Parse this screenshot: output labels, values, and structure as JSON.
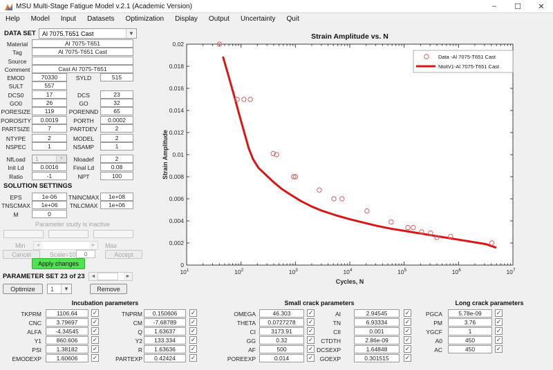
{
  "window": {
    "title": "MSU Multi-Stage Fatigue Model v.2.1 (Academic Version)",
    "minimize": "–",
    "maximize": "☐",
    "close": "✕"
  },
  "menu": {
    "items": [
      "Help",
      "Model",
      "Input",
      "Datasets",
      "Optimization",
      "Display",
      "Output",
      "Uncertainty",
      "Quit"
    ]
  },
  "left_panel": {
    "dataset_label": "DATA SET",
    "dataset_value": "Al 7075.T651 Cast",
    "info_rows": [
      {
        "label": "Material",
        "value": "Al 7075-T651"
      },
      {
        "label": "Tag",
        "value": "Al 7075-T651 Cast"
      },
      {
        "label": "Source",
        "value": ""
      },
      {
        "label": "Comment",
        "value": "Cast Al 7075-T651"
      }
    ],
    "param_rows_1": [
      {
        "l": "EMOD",
        "lv": "70330",
        "r": "SYLD",
        "rv": "515"
      },
      {
        "l": "SULT",
        "lv": "557",
        "r": null,
        "rv": null
      },
      {
        "l": "DCS0",
        "lv": "17",
        "r": "DCS",
        "rv": "23"
      },
      {
        "l": "GO0",
        "lv": "26",
        "r": "GO",
        "rv": "32"
      },
      {
        "l": "PORESIZE",
        "lv": "119",
        "r": "PORENND",
        "rv": "65"
      },
      {
        "l": "POROSITY",
        "lv": "0.0019",
        "r": "PORTH",
        "rv": "0.0002"
      },
      {
        "l": "PARTSIZE",
        "lv": "7",
        "r": "PARTDEV",
        "rv": "2"
      }
    ],
    "param_rows_2": [
      {
        "l": "NTYPE",
        "lv": "2",
        "r": "MODEL",
        "rv": "2"
      },
      {
        "l": "NSPEC",
        "lv": "1",
        "r": "NSAMP",
        "rv": "1"
      }
    ],
    "param_rows_3": [
      {
        "l": "NfLoad",
        "lv": "1",
        "r": "Nloadef",
        "rv": "2",
        "ldd": true
      },
      {
        "l": "Init Ld",
        "lv": "0.0016",
        "r": "Final Ld",
        "rv": "0.08"
      },
      {
        "l": "Ratio",
        "lv": "-1",
        "r": "NPT",
        "rv": "100"
      }
    ],
    "solution_header": "SOLUTION SETTINGS",
    "solution_rows": [
      {
        "l": "EPS",
        "lv": "1e-06",
        "r": "TNINCMAX",
        "rv": "1e+08"
      },
      {
        "l": "TNSCMAX",
        "lv": "1e+06",
        "r": "TNLCMAX",
        "rv": "1e+06"
      },
      {
        "l": "M",
        "lv": "0",
        "r": null,
        "rv": null
      }
    ],
    "study": {
      "status": "Parameter study is inactive",
      "min_label": "Min",
      "max_label": "Max",
      "cancel": "Cancel",
      "scale_label": "Scale=10^",
      "scale_value": "0",
      "accept": "Accept",
      "apply": "Apply changes"
    },
    "pset": {
      "label": "PARAMETER SET 23 of 23",
      "optimize": "Optimize",
      "select_value": "1",
      "remove": "Remove"
    }
  },
  "param_groups": [
    {
      "title": "Incubation parameters",
      "rows": [
        [
          {
            "label": "TKPRM",
            "value": "1106.64",
            "checked": true
          },
          {
            "label": "TNPRM",
            "value": "0.150606",
            "checked": true
          }
        ],
        [
          {
            "label": "CNC",
            "value": "3.79697",
            "checked": true
          },
          {
            "label": "CM",
            "value": "-7.68789",
            "checked": true
          }
        ],
        [
          {
            "label": "ALFA",
            "value": "-4.34545",
            "checked": true
          },
          {
            "label": "Q",
            "value": "1.63637",
            "checked": true
          }
        ],
        [
          {
            "label": "Y1",
            "value": "860.606",
            "checked": true
          },
          {
            "label": "Y2",
            "value": "133.334",
            "checked": true
          }
        ],
        [
          {
            "label": "PSI",
            "value": "1.38182",
            "checked": true
          },
          {
            "label": "R",
            "value": "1.63636",
            "checked": true
          }
        ],
        [
          {
            "label": "EMODEXP",
            "value": "1.60606",
            "checked": true
          },
          {
            "label": "PARTEXP",
            "value": "0.42424",
            "checked": true
          }
        ]
      ]
    },
    {
      "title": "Small crack parameters",
      "rows": [
        [
          {
            "label": "OMEGA",
            "value": "46.303",
            "checked": true
          },
          {
            "label": "AI",
            "value": "2.94545",
            "checked": true
          }
        ],
        [
          {
            "label": "THETA",
            "value": "0.0727278",
            "checked": true
          },
          {
            "label": "TN",
            "value": "6.93334",
            "checked": true
          }
        ],
        [
          {
            "label": "CI",
            "value": "3173.91",
            "checked": true
          },
          {
            "label": "CII",
            "value": "0.001",
            "checked": true
          }
        ],
        [
          {
            "label": "GG",
            "value": "0.32",
            "checked": true
          },
          {
            "label": "CTDTH",
            "value": "2.86e-09",
            "checked": true
          }
        ],
        [
          {
            "label": "AF",
            "value": "500",
            "checked": true
          },
          {
            "label": "DCSEXP",
            "value": "1.64848",
            "checked": true
          }
        ],
        [
          {
            "label": "POREEXP",
            "value": "0.014",
            "checked": true
          },
          {
            "label": "GOEXP",
            "value": "0.301515",
            "checked": true
          }
        ]
      ]
    },
    {
      "title": "Long crack parameters",
      "rows": [
        [
          {
            "label": "PGCA",
            "value": "5.78e-09",
            "checked": true
          }
        ],
        [
          {
            "label": "PM",
            "value": "3.76",
            "checked": true
          }
        ],
        [
          {
            "label": "YGCF",
            "value": "1",
            "checked": true
          }
        ],
        [
          {
            "label": "A0",
            "value": "450",
            "checked": true
          }
        ],
        [
          {
            "label": "AC",
            "value": "450",
            "checked": true
          }
        ]
      ]
    }
  ],
  "chart_data": {
    "type": "line",
    "title": "Strain Amplitude vs. N",
    "xlabel": "Cycles, N",
    "ylabel": "Strain Amplitude",
    "x_scale": "log",
    "xlim": [
      10,
      10000000
    ],
    "ylim": [
      0,
      0.02
    ],
    "ytick_step": 0.002,
    "legend_position": "top-right",
    "grid": false,
    "colors": {
      "data_marker": "#d96060",
      "fit_line": "#db1414",
      "axis": "#3c3c3c"
    },
    "series": [
      {
        "name": "Data -Al 7075-T651 Cast",
        "type": "scatter",
        "points": [
          [
            40,
            0.02
          ],
          [
            85,
            0.015
          ],
          [
            113,
            0.015
          ],
          [
            148,
            0.015
          ],
          [
            390,
            0.0101
          ],
          [
            450,
            0.01
          ],
          [
            930,
            0.008
          ],
          [
            1000,
            0.008
          ],
          [
            2750,
            0.0068
          ],
          [
            5100,
            0.006
          ],
          [
            7200,
            0.006
          ],
          [
            20700,
            0.0049
          ],
          [
            57800,
            0.0039
          ],
          [
            117000,
            0.0034
          ],
          [
            147000,
            0.0034
          ],
          [
            209000,
            0.003
          ],
          [
            306000,
            0.0029
          ],
          [
            400000,
            0.0025
          ],
          [
            716000,
            0.0026
          ],
          [
            4100000,
            0.002
          ]
        ]
      },
      {
        "name": "NtotV1-Al 7075-T651 Cast",
        "type": "line",
        "points": [
          [
            47,
            0.0188
          ],
          [
            60,
            0.017
          ],
          [
            76,
            0.0152
          ],
          [
            93,
            0.0136
          ],
          [
            115,
            0.012
          ],
          [
            138,
            0.0106
          ],
          [
            166,
            0.0096
          ],
          [
            209,
            0.0088
          ],
          [
            282,
            0.0082
          ],
          [
            400,
            0.0075
          ],
          [
            560,
            0.0069
          ],
          [
            800,
            0.0064
          ],
          [
            1260,
            0.0058
          ],
          [
            2000,
            0.0053
          ],
          [
            3160,
            0.0049
          ],
          [
            5600,
            0.0045
          ],
          [
            10000,
            0.00415
          ],
          [
            17800,
            0.00385
          ],
          [
            31600,
            0.00355
          ],
          [
            56200,
            0.0033
          ],
          [
            100000,
            0.0031
          ],
          [
            178000,
            0.0029
          ],
          [
            316000,
            0.0027
          ],
          [
            562000,
            0.0025
          ],
          [
            1000000,
            0.0023
          ],
          [
            1780000,
            0.0021
          ],
          [
            3160000,
            0.0019
          ],
          [
            4800000,
            0.0016
          ]
        ]
      }
    ]
  }
}
